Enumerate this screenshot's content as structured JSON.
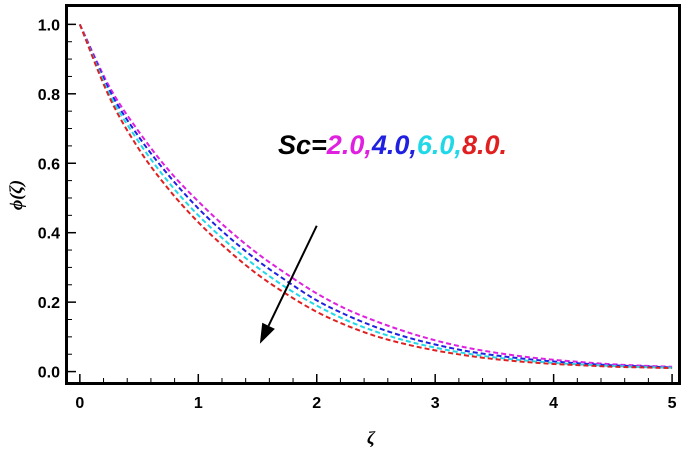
{
  "chart_data": {
    "type": "line",
    "title": "",
    "xlabel": "ζ",
    "ylabel": "ϕ(ζ)",
    "xlim": [
      -0.1,
      5.05
    ],
    "ylim": [
      -0.03,
      1.05
    ],
    "x_ticks": [
      0,
      1,
      2,
      3,
      4,
      5
    ],
    "x_tick_labels": [
      "0",
      "1",
      "2",
      "3",
      "4",
      "5"
    ],
    "y_ticks": [
      0.0,
      0.2,
      0.4,
      0.6,
      0.8,
      1.0
    ],
    "y_tick_labels": [
      "0.0",
      "0.2",
      "0.4",
      "0.6",
      "0.8",
      "1.0"
    ],
    "grid": false,
    "line_style": "dashed",
    "x": [
      0,
      0.25,
      0.5,
      0.75,
      1,
      1.25,
      1.5,
      1.75,
      2,
      2.25,
      2.5,
      2.75,
      3,
      3.25,
      3.5,
      3.75,
      4,
      4.25,
      4.5,
      4.75,
      5
    ],
    "series": [
      {
        "color": "#e020e0",
        "values": [
          1.0,
          0.82,
          0.69,
          0.58,
          0.49,
          0.41,
          0.34,
          0.28,
          0.225,
          0.18,
          0.145,
          0.115,
          0.09,
          0.07,
          0.055,
          0.043,
          0.034,
          0.027,
          0.021,
          0.017,
          0.014
        ]
      },
      {
        "color": "#2020e0",
        "values": [
          1.0,
          0.81,
          0.675,
          0.565,
          0.47,
          0.39,
          0.32,
          0.26,
          0.205,
          0.163,
          0.128,
          0.1,
          0.078,
          0.06,
          0.047,
          0.037,
          0.029,
          0.023,
          0.018,
          0.015,
          0.012
        ]
      },
      {
        "color": "#20d8e8",
        "values": [
          1.0,
          0.8,
          0.66,
          0.545,
          0.45,
          0.37,
          0.3,
          0.24,
          0.19,
          0.148,
          0.115,
          0.089,
          0.069,
          0.053,
          0.041,
          0.032,
          0.025,
          0.02,
          0.016,
          0.013,
          0.011
        ]
      },
      {
        "color": "#e02020",
        "values": [
          1.0,
          0.79,
          0.64,
          0.525,
          0.43,
          0.35,
          0.28,
          0.222,
          0.172,
          0.133,
          0.102,
          0.079,
          0.061,
          0.047,
          0.036,
          0.028,
          0.022,
          0.018,
          0.014,
          0.012,
          0.01
        ]
      }
    ],
    "annotation": {
      "prefix": "Sc=",
      "prefix_color": "#000000",
      "parts": [
        {
          "text": "2.0,",
          "color": "#e020e0"
        },
        {
          "text": "4.0,",
          "color": "#2020e0"
        },
        {
          "text": "6.0,",
          "color": "#20d8e8"
        },
        {
          "text": "8.0.",
          "color": "#e02020"
        }
      ]
    },
    "arrow": {
      "from": [
        2.0,
        0.42
      ],
      "to": [
        1.52,
        0.08
      ],
      "direction": "increasing Sc"
    }
  }
}
